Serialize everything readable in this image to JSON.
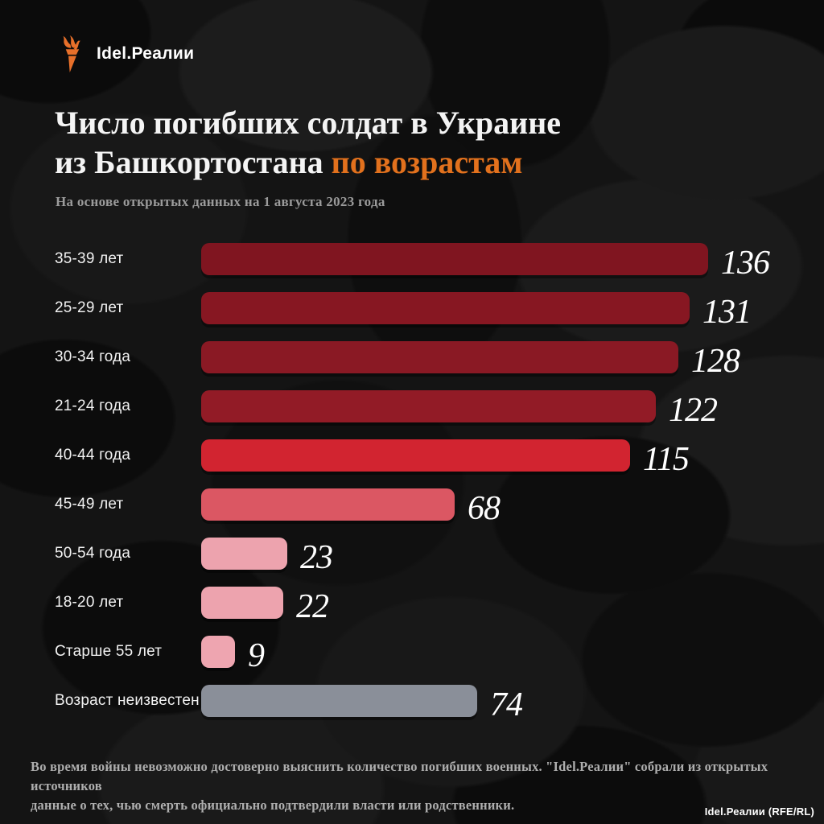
{
  "logo": {
    "icon": "torch-icon",
    "text": "Idel.Реалии",
    "brand_orange": "#e8702a"
  },
  "title": {
    "line1": "Число погибших солдат в Украине",
    "line2_white": "из Башкортостана",
    "line2_accent": "по возрастам",
    "accent_color": "#e2711d"
  },
  "subtitle": "На основе открытых данных на 1 августа 2023 года",
  "chart_data": {
    "type": "bar",
    "orientation": "horizontal",
    "max_value": 136,
    "categories": [
      "35-39 лет",
      "25-29 лет",
      "30-34 года",
      "21-24 года",
      "40-44 года",
      "45-49 лет",
      "50-54 года",
      "18-20 лет",
      "Старше 55 лет",
      "Возраст неизвестен"
    ],
    "values": [
      136,
      131,
      128,
      122,
      115,
      68,
      23,
      22,
      9,
      74
    ],
    "rows": [
      {
        "label": "35-39 лет",
        "value": 136,
        "color": "#801520"
      },
      {
        "label": "25-29 лет",
        "value": 131,
        "color": "#871722"
      },
      {
        "label": "30-34 года",
        "value": 128,
        "color": "#8a1924"
      },
      {
        "label": "21-24 года",
        "value": 122,
        "color": "#921b26"
      },
      {
        "label": "40-44 года",
        "value": 115,
        "color": "#d22430"
      },
      {
        "label": "45-49 лет",
        "value": 68,
        "color": "#db5763"
      },
      {
        "label": "50-54 года",
        "value": 23,
        "color": "#eda3ae"
      },
      {
        "label": "18-20 лет",
        "value": 22,
        "color": "#eda3ae"
      },
      {
        "label": "Старше 55 лет",
        "value": 9,
        "color": "#eea5b0"
      },
      {
        "label": "Возраст неизвестен",
        "value": 74,
        "color": "#8a8f99"
      }
    ]
  },
  "footer": {
    "line1": "Во время войны невозможно достоверно выяснить количество погибших военных. \"Idel.Реалии\" собрали из открытых источников",
    "line2": "данные о тех, чью смерть официально подтвердили власти или родственники."
  },
  "credit": "Idel.Реалии (RFE/RL)"
}
